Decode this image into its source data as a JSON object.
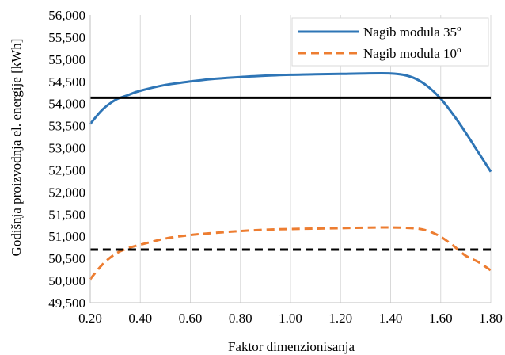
{
  "chart_data": {
    "type": "line",
    "title": "",
    "xlabel": "Faktor dimenzionisanja",
    "ylabel": "Godišnja proizvodnja el. energije [kWh]",
    "xlim": [
      0.2,
      1.8
    ],
    "ylim": [
      49500,
      56000
    ],
    "x_ticks": [
      "0.20",
      "0.40",
      "0.60",
      "0.80",
      "1.00",
      "1.20",
      "1.40",
      "1.60",
      "1.80"
    ],
    "y_ticks": [
      "49,500",
      "50,000",
      "50,500",
      "51,000",
      "51,500",
      "52,000",
      "52,500",
      "53,000",
      "53,500",
      "54,000",
      "54,500",
      "55,000",
      "55,500",
      "56,000"
    ],
    "grid": "vertical",
    "legend_position": "top-right",
    "series": [
      {
        "name": "Nagib modula 35",
        "name_sup": "o",
        "color": "#2E75B6",
        "style": "solid",
        "x": [
          0.2,
          0.25,
          0.3,
          0.35,
          0.4,
          0.5,
          0.6,
          0.7,
          0.8,
          0.9,
          1.0,
          1.1,
          1.2,
          1.3,
          1.4,
          1.45,
          1.5,
          1.55,
          1.6,
          1.65,
          1.7,
          1.75,
          1.8
        ],
        "values": [
          53540,
          53870,
          54080,
          54190,
          54290,
          54420,
          54500,
          54560,
          54600,
          54630,
          54650,
          54660,
          54670,
          54680,
          54680,
          54650,
          54560,
          54380,
          54110,
          53750,
          53340,
          52900,
          52460
        ]
      },
      {
        "name": "Nagib modula 10",
        "name_sup": "o",
        "color": "#ED7D31",
        "style": "dashed",
        "x": [
          0.2,
          0.25,
          0.3,
          0.35,
          0.4,
          0.5,
          0.6,
          0.7,
          0.8,
          0.9,
          1.0,
          1.1,
          1.2,
          1.3,
          1.4,
          1.5,
          1.55,
          1.6,
          1.65,
          1.7,
          1.75,
          1.8
        ],
        "values": [
          50030,
          50370,
          50600,
          50730,
          50810,
          50950,
          51030,
          51080,
          51120,
          51150,
          51165,
          51175,
          51185,
          51195,
          51200,
          51180,
          51120,
          50990,
          50790,
          50560,
          50420,
          50230
        ]
      },
      {
        "name": "",
        "color": "#000000",
        "style": "solid",
        "x": [
          0.2,
          1.8
        ],
        "values": [
          54130,
          54130
        ]
      },
      {
        "name": "",
        "color": "#000000",
        "style": "dashed",
        "x": [
          0.2,
          1.8
        ],
        "values": [
          50700,
          50700
        ]
      }
    ]
  }
}
